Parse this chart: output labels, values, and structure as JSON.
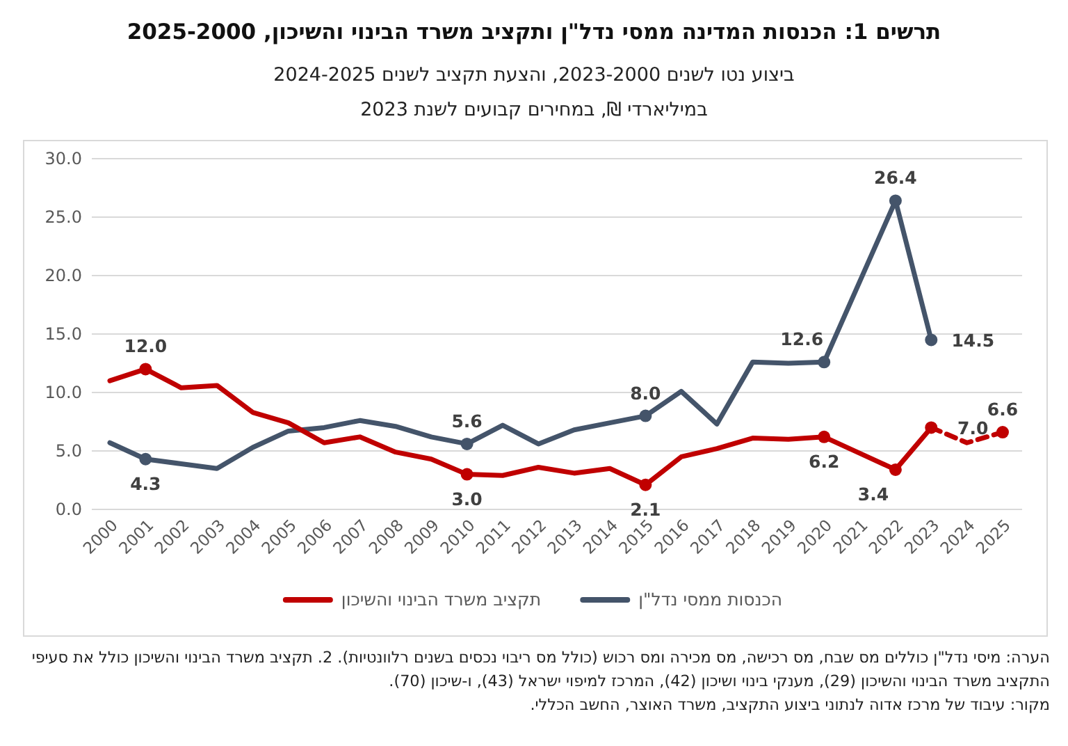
{
  "chart_data": {
    "type": "line",
    "title": "תרשים 1: הכנסות המדינה ממסי נדל\"ן ותקציב משרד הבינוי והשיכון, 2025-2000",
    "subtitle": "ביצוע נטו לשנים 2023-2000, והצעת תקציב לשנים 2024-2025\nבמיליארדי ₪, במחירים קבועים לשנת 2023",
    "categories": [
      "2000",
      "2001",
      "2002",
      "2003",
      "2004",
      "2005",
      "2006",
      "2007",
      "2008",
      "2009",
      "2010",
      "2011",
      "2012",
      "2013",
      "2014",
      "2015",
      "2016",
      "2017",
      "2018",
      "2019",
      "2020",
      "2021",
      "2022",
      "2023",
      "2024",
      "2025"
    ],
    "series": [
      {
        "name": "הכנסות ממסי נדל\"ן",
        "color": "#44546a",
        "values": [
          5.7,
          4.3,
          3.9,
          3.5,
          5.3,
          6.7,
          7.0,
          7.6,
          7.1,
          6.2,
          5.6,
          7.2,
          5.6,
          6.8,
          7.4,
          8.0,
          10.1,
          7.3,
          12.6,
          12.5,
          12.6,
          19.5,
          26.4,
          14.5,
          null,
          null
        ],
        "value_labels": [
          null,
          "4.3",
          null,
          null,
          null,
          null,
          null,
          null,
          null,
          null,
          "5.6",
          null,
          null,
          null,
          null,
          "8.0",
          null,
          null,
          null,
          null,
          "12.6",
          null,
          "26.4",
          "14.5",
          null,
          null
        ]
      },
      {
        "name": "תקציב משרד הבינוי והשיכון",
        "color": "#c00000",
        "values": [
          11.0,
          12.0,
          10.4,
          10.6,
          8.3,
          7.4,
          5.7,
          6.2,
          4.9,
          4.3,
          3.0,
          2.9,
          3.6,
          3.1,
          3.5,
          2.1,
          4.5,
          5.2,
          6.1,
          6.0,
          6.2,
          4.8,
          3.4,
          7.0,
          null,
          null
        ],
        "value_labels": [
          null,
          "12.0",
          null,
          null,
          null,
          null,
          null,
          null,
          null,
          null,
          "3.0",
          null,
          null,
          null,
          null,
          "2.1",
          null,
          null,
          null,
          null,
          "6.2",
          null,
          "3.4",
          "7.0",
          null,
          null
        ]
      },
      {
        "color": "#c00000",
        "line_style": "dashed",
        "values": [
          null,
          null,
          null,
          null,
          null,
          null,
          null,
          null,
          null,
          null,
          null,
          null,
          null,
          null,
          null,
          null,
          null,
          null,
          null,
          null,
          null,
          null,
          null,
          7.0,
          5.7,
          6.6
        ],
        "value_labels": [
          null,
          null,
          null,
          null,
          null,
          null,
          null,
          null,
          null,
          null,
          null,
          null,
          null,
          null,
          null,
          null,
          null,
          null,
          null,
          null,
          null,
          null,
          null,
          null,
          null,
          "6.6"
        ]
      }
    ],
    "ylim": [
      0,
      30
    ],
    "yticks": [
      {
        "value": 0,
        "label": "0.0"
      },
      {
        "value": 5,
        "label": "5.0"
      },
      {
        "value": 10,
        "label": "10.0"
      },
      {
        "value": 15,
        "label": "15.0"
      },
      {
        "value": 20,
        "label": "20.0"
      },
      {
        "value": 25,
        "label": "25.0"
      },
      {
        "value": 30,
        "label": "30.0"
      }
    ],
    "grid": "y",
    "legend": "bottom",
    "line_style": "solid",
    "annotations": [
      "הערה: מיסי נדל\"ן כוללים מס שבח, מס רכישה, מס מכירה ומס רכוש (כולל מס ריבוי נכסים בשנים רלוונטיות). 2. תקציב משרד הבינוי והשיכון כולל את סעיפי התקציב משרד הבינוי והשיכון (29), מענקי בינוי ושיכון (42), המרכז למיפוי ישראל (43), ו-שיכון (70).",
      "מקור: עיבוד של מרכז אדוה לנתוני ביצוע התקציב, משרד האוצר, החשב הכללי."
    ]
  }
}
